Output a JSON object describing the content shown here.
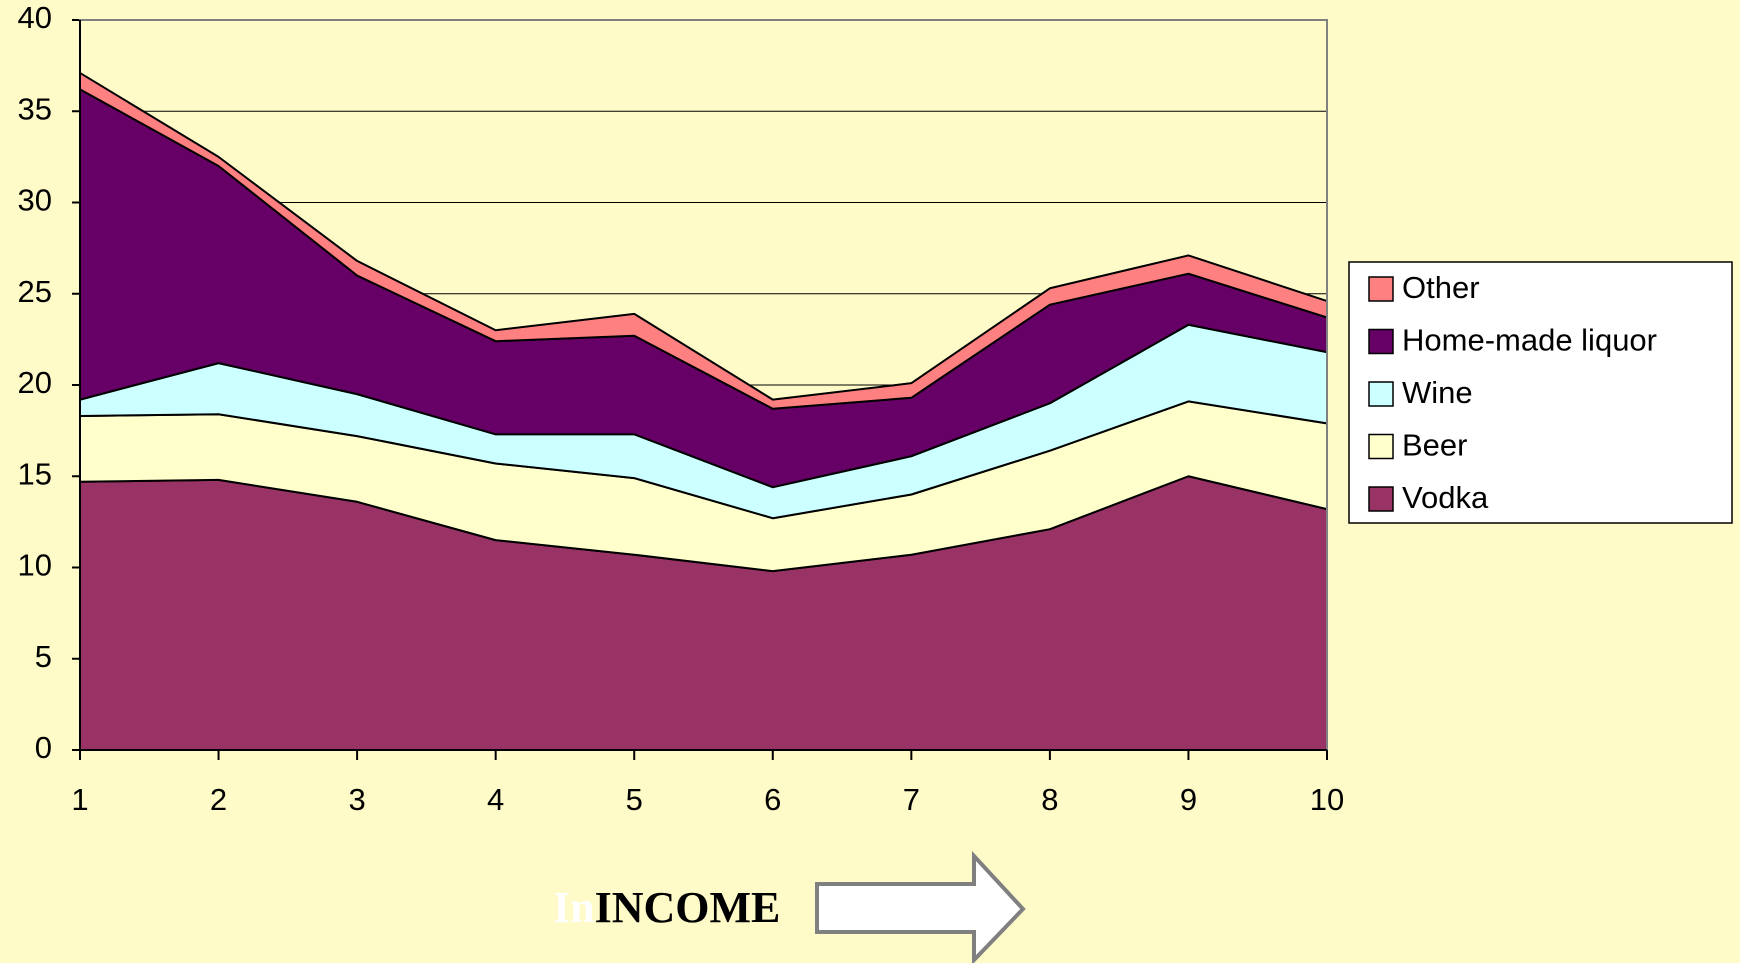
{
  "chart_data": {
    "type": "stacked_area",
    "x": [
      1,
      2,
      3,
      4,
      5,
      6,
      7,
      8,
      9,
      10
    ],
    "xlim": [
      1,
      10
    ],
    "xticks": [
      1,
      2,
      3,
      4,
      5,
      6,
      7,
      8,
      9,
      10
    ],
    "ylim": [
      0,
      40
    ],
    "yticks": [
      0,
      5,
      10,
      15,
      20,
      25,
      30,
      35,
      40
    ],
    "grid": true,
    "legend": "right",
    "series": [
      {
        "name": "Vodka",
        "color": "#993366",
        "values": [
          14.7,
          14.8,
          13.6,
          11.5,
          10.7,
          9.8,
          10.7,
          12.1,
          15.0,
          13.2
        ]
      },
      {
        "name": "Beer",
        "color": "#ffffcc",
        "values": [
          3.6,
          3.6,
          3.6,
          4.2,
          4.2,
          2.9,
          3.3,
          4.3,
          4.1,
          4.7
        ]
      },
      {
        "name": "Wine",
        "color": "#ccffff",
        "values": [
          0.9,
          2.8,
          2.3,
          1.6,
          2.4,
          1.7,
          2.1,
          2.6,
          4.2,
          3.9
        ]
      },
      {
        "name": "Home-made liquor",
        "color": "#660066",
        "values": [
          17.0,
          10.8,
          6.5,
          5.1,
          5.4,
          4.3,
          3.2,
          5.4,
          2.8,
          1.9
        ]
      },
      {
        "name": "Other",
        "color": "#ff8080",
        "values": [
          0.9,
          0.5,
          0.8,
          0.6,
          1.2,
          0.5,
          0.8,
          0.9,
          1.0,
          0.9
        ]
      }
    ],
    "x_label": [
      "In",
      "INCOME"
    ]
  }
}
